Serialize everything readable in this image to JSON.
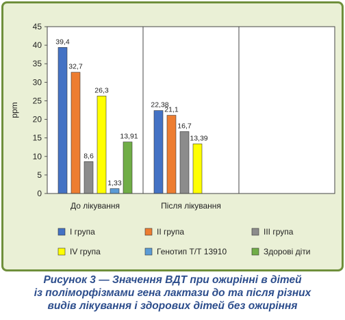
{
  "chart_data": {
    "type": "bar",
    "ylabel": "ppm",
    "ylim": [
      0,
      45
    ],
    "yticks": [
      0,
      5,
      10,
      15,
      20,
      25,
      30,
      35,
      40,
      45
    ],
    "categories": [
      "До лікування",
      "Після лікування",
      ""
    ],
    "series": [
      {
        "name": "I група",
        "color": "#4472c4",
        "values": [
          39.4,
          22.38,
          null
        ],
        "labels": [
          "39,4",
          "22,38",
          null
        ]
      },
      {
        "name": "II група",
        "color": "#ed7d31",
        "values": [
          32.7,
          21.1,
          null
        ],
        "labels": [
          "32,7",
          "21,1",
          null
        ]
      },
      {
        "name": "III група",
        "color": "#8c8c8c",
        "values": [
          8.6,
          16.7,
          null
        ],
        "labels": [
          "8,6",
          "16,7",
          null
        ]
      },
      {
        "name": "IV група",
        "color": "#ffff00",
        "values": [
          26.3,
          13.39,
          null
        ],
        "labels": [
          "26,3",
          "13,39",
          null
        ]
      },
      {
        "name": "Генотип Т/Т 13910",
        "color": "#5b9bd5",
        "values": [
          1.33,
          null,
          null
        ],
        "labels": [
          "1,33",
          null,
          null
        ]
      },
      {
        "name": "Здорові діти",
        "color": "#70ad47",
        "values": [
          13.91,
          null,
          null
        ],
        "labels": [
          "13,91",
          null,
          null
        ]
      }
    ],
    "legend_position": "bottom",
    "grid": false
  },
  "caption": {
    "line1": "Рисунок 3 — Значення ВДТ при ожирінні в дітей",
    "line2": "із поліморфізмами гена лактази до та після різних",
    "line3": "видів лікування і здорових дітей без ожиріння"
  }
}
